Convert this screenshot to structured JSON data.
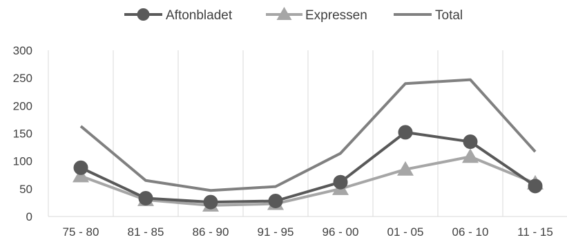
{
  "chart_data": {
    "type": "line",
    "categories": [
      "75 - 80",
      "81 - 85",
      "86 - 90",
      "91 - 95",
      "96 - 00",
      "01 - 05",
      "06 - 10",
      "11 - 15"
    ],
    "series": [
      {
        "name": "Aftonbladet",
        "values": [
          88,
          33,
          26,
          28,
          62,
          152,
          135,
          55
        ],
        "color": "#595959",
        "marker": "circle"
      },
      {
        "name": "Expressen",
        "values": [
          73,
          30,
          20,
          23,
          50,
          85,
          108,
          60
        ],
        "color": "#a6a6a6",
        "marker": "triangle"
      },
      {
        "name": "Total",
        "values": [
          163,
          65,
          47,
          54,
          114,
          240,
          247,
          117
        ],
        "color": "#808080",
        "marker": "none"
      }
    ],
    "ylim": [
      0,
      300
    ],
    "yticks": [
      "0",
      "50",
      "100",
      "150",
      "200",
      "250",
      "300"
    ],
    "grid": "vertical",
    "legend": "top-center"
  }
}
